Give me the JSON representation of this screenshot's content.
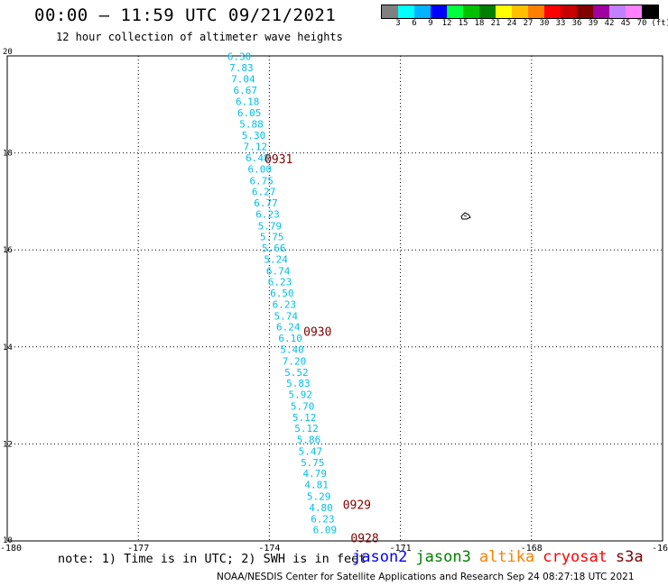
{
  "header": {
    "title": "00:00 – 11:59 UTC 09/21/2021",
    "subtitle": "12 hour collection of altimeter wave heights"
  },
  "legend": {
    "unit": "(ft)",
    "colors": [
      "#808080",
      "#00ffff",
      "#00b4ff",
      "#0000ff",
      "#00ff3c",
      "#00c000",
      "#008000",
      "#ffff00",
      "#ffc000",
      "#ff8000",
      "#ff0000",
      "#c80000",
      "#800000",
      "#a000a0",
      "#c080ff",
      "#ff80ff",
      "#000000"
    ],
    "labels": [
      "3",
      "6",
      "9",
      "12",
      "15",
      "18",
      "21",
      "24",
      "27",
      "30",
      "33",
      "36",
      "39",
      "42",
      "45",
      "70"
    ]
  },
  "map": {
    "lat_labels": [
      {
        "lat": 20,
        "label": "20"
      },
      {
        "lat": 18,
        "label": "18"
      },
      {
        "lat": 16,
        "label": "16"
      },
      {
        "lat": 14,
        "label": "14"
      },
      {
        "lat": 12,
        "label": "12"
      },
      {
        "lat": 10,
        "label": "10"
      }
    ],
    "lon_labels": [
      {
        "lon": -180,
        "label": "-180"
      },
      {
        "lon": -177,
        "label": "-177"
      },
      {
        "lon": -174,
        "label": "-174"
      },
      {
        "lon": -171,
        "label": "-171"
      },
      {
        "lon": -168,
        "label": "-168"
      },
      {
        "lon": -165,
        "label": "-16"
      }
    ],
    "track": [
      {
        "lat": 19.99,
        "lon": -174.69,
        "swh": "6.30"
      },
      {
        "lat": 19.76,
        "lon": -174.64,
        "swh": "7.83"
      },
      {
        "lat": 19.53,
        "lon": -174.6,
        "swh": "7.04"
      },
      {
        "lat": 19.29,
        "lon": -174.55,
        "swh": "6.67"
      },
      {
        "lat": 19.06,
        "lon": -174.5,
        "swh": "6.18"
      },
      {
        "lat": 18.83,
        "lon": -174.46,
        "swh": "6.05"
      },
      {
        "lat": 18.6,
        "lon": -174.41,
        "swh": "5.88"
      },
      {
        "lat": 18.36,
        "lon": -174.36,
        "swh": "5.30"
      },
      {
        "lat": 18.13,
        "lon": -174.32,
        "swh": "7.12"
      },
      {
        "lat": 17.9,
        "lon": -174.27,
        "swh": "6.48"
      },
      {
        "lat": 17.67,
        "lon": -174.22,
        "swh": "6.00"
      },
      {
        "lat": 17.43,
        "lon": -174.18,
        "swh": "6.75"
      },
      {
        "lat": 17.2,
        "lon": -174.13,
        "swh": "6.27"
      },
      {
        "lat": 16.97,
        "lon": -174.08,
        "swh": "6.77"
      },
      {
        "lat": 16.74,
        "lon": -174.04,
        "swh": "6.23"
      },
      {
        "lat": 16.5,
        "lon": -173.99,
        "swh": "5.79"
      },
      {
        "lat": 16.27,
        "lon": -173.94,
        "swh": "5.75"
      },
      {
        "lat": 16.04,
        "lon": -173.9,
        "swh": "5.66"
      },
      {
        "lat": 15.81,
        "lon": -173.85,
        "swh": "5.24"
      },
      {
        "lat": 15.57,
        "lon": -173.8,
        "swh": "6.74"
      },
      {
        "lat": 15.34,
        "lon": -173.76,
        "swh": "6.23"
      },
      {
        "lat": 15.11,
        "lon": -173.71,
        "swh": "6.50"
      },
      {
        "lat": 14.88,
        "lon": -173.66,
        "swh": "6.23"
      },
      {
        "lat": 14.64,
        "lon": -173.62,
        "swh": "5.74"
      },
      {
        "lat": 14.41,
        "lon": -173.57,
        "swh": "6.24"
      },
      {
        "lat": 14.18,
        "lon": -173.52,
        "swh": "6.10"
      },
      {
        "lat": 13.95,
        "lon": -173.48,
        "swh": "5.40"
      },
      {
        "lat": 13.71,
        "lon": -173.43,
        "swh": "7.20"
      },
      {
        "lat": 13.48,
        "lon": -173.38,
        "swh": "5.52"
      },
      {
        "lat": 13.25,
        "lon": -173.34,
        "swh": "5.83"
      },
      {
        "lat": 13.02,
        "lon": -173.29,
        "swh": "5.92"
      },
      {
        "lat": 12.78,
        "lon": -173.24,
        "swh": "5.70"
      },
      {
        "lat": 12.55,
        "lon": -173.2,
        "swh": "5.12"
      },
      {
        "lat": 12.32,
        "lon": -173.15,
        "swh": "5.12"
      },
      {
        "lat": 12.09,
        "lon": -173.1,
        "swh": "5.86"
      },
      {
        "lat": 11.85,
        "lon": -173.06,
        "swh": "5.47"
      },
      {
        "lat": 11.62,
        "lon": -173.01,
        "swh": "5.75"
      },
      {
        "lat": 11.39,
        "lon": -172.96,
        "swh": "4.79"
      },
      {
        "lat": 11.16,
        "lon": -172.92,
        "swh": "4.81"
      },
      {
        "lat": 10.92,
        "lon": -172.87,
        "swh": "5.29"
      },
      {
        "lat": 10.69,
        "lon": -172.82,
        "swh": "4.80"
      },
      {
        "lat": 10.46,
        "lon": -172.78,
        "swh": "6.23"
      },
      {
        "lat": 10.23,
        "lon": -172.73,
        "swh": "6.09"
      }
    ],
    "time_labels": [
      {
        "lat": 17.86,
        "lon": -174.73,
        "label": "0931"
      },
      {
        "lat": 14.3,
        "lon": -173.84,
        "label": "0930"
      },
      {
        "lat": 10.73,
        "lon": -172.94,
        "label": "0929"
      },
      {
        "lat": 10.05,
        "lon": -172.76,
        "label": "0928"
      }
    ]
  },
  "note": "note: 1) Time is in UTC; 2) SWH is in feet",
  "satellites": [
    {
      "name": "jason2",
      "color": "#0000ff"
    },
    {
      "name": "jason3",
      "color": "#008000"
    },
    {
      "name": "altika",
      "color": "#ff8000"
    },
    {
      "name": "cryosat",
      "color": "#ff0000"
    },
    {
      "name": "s3a",
      "color": "#800000"
    }
  ],
  "footer": "NOAA/NESDIS Center for Satellite Applications and Research   Sep 24 08:27:18 UTC 2021"
}
